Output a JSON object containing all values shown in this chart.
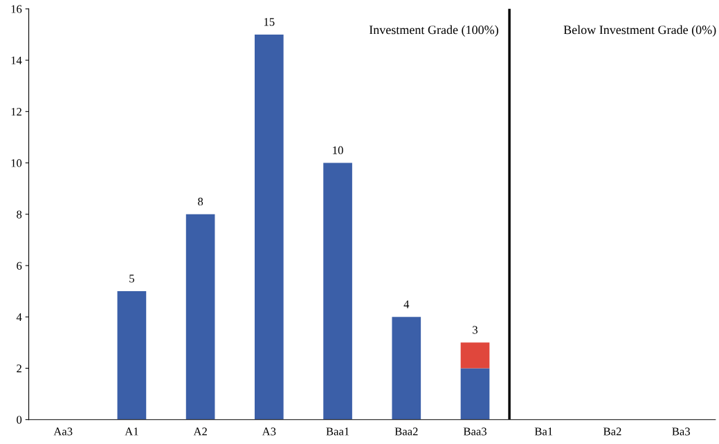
{
  "chart_data": {
    "type": "bar",
    "stacked": true,
    "categories": [
      "Aa3",
      "A1",
      "A2",
      "A3",
      "Baa1",
      "Baa2",
      "Baa3",
      "Ba1",
      "Ba2",
      "Ba3"
    ],
    "series": [
      {
        "color": "#3b5fa8",
        "values": [
          0,
          5,
          8,
          15,
          10,
          4,
          2,
          0,
          0,
          0
        ]
      },
      {
        "color": "#e0473c",
        "values": [
          0,
          0,
          0,
          0,
          0,
          0,
          1,
          0,
          0,
          0
        ]
      }
    ],
    "totals": [
      null,
      "5",
      "8",
      "15",
      "10",
      "4",
      "3",
      null,
      null,
      null
    ],
    "ylim": [
      0,
      16
    ],
    "yticks": [
      0,
      2,
      4,
      6,
      8,
      10,
      12,
      14,
      16
    ],
    "grid": false,
    "annotations": [
      "Investment Grade (100%)",
      "Below Investment Grade (0%)"
    ]
  }
}
